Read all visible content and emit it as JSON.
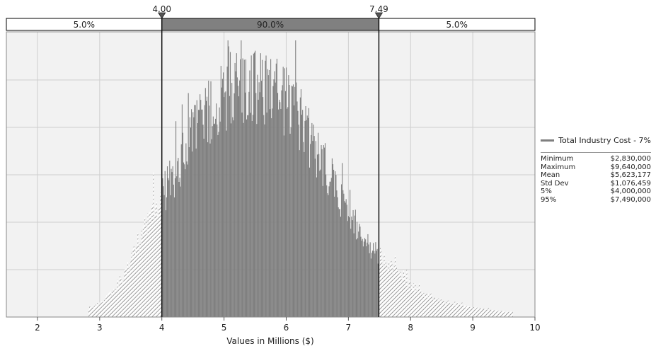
{
  "chart_data": {
    "type": "bar",
    "title": "",
    "xlabel": "Values in Millions ($)",
    "ylabel": "",
    "xlim": [
      1.5,
      10
    ],
    "x_ticks": [
      "2",
      "3",
      "4",
      "5",
      "6",
      "7",
      "8",
      "9",
      "10"
    ],
    "grid": true,
    "legend_position": "right",
    "series": [
      {
        "name": "Total Industry Cost - 7%",
        "color": "#7f7f7f"
      }
    ],
    "delimiters": {
      "left": "4.00",
      "right": "7.49",
      "left_value": 4.0,
      "right_value": 7.49
    },
    "bands": [
      "5.0%",
      "90.0%",
      "5.0%"
    ],
    "histogram_envelope": {
      "x": [
        2.8,
        3.0,
        3.2,
        3.4,
        3.6,
        3.8,
        4.0,
        4.2,
        4.4,
        4.6,
        4.8,
        5.0,
        5.2,
        5.4,
        5.6,
        5.8,
        6.0,
        6.2,
        6.4,
        6.6,
        6.8,
        7.0,
        7.2,
        7.4,
        7.6,
        7.8,
        8.0,
        8.2,
        8.4,
        8.6,
        8.8,
        9.0,
        9.2,
        9.4,
        9.6
      ],
      "relative_height": [
        0.03,
        0.05,
        0.09,
        0.16,
        0.26,
        0.38,
        0.45,
        0.53,
        0.64,
        0.72,
        0.78,
        0.83,
        0.86,
        0.87,
        0.86,
        0.84,
        0.8,
        0.75,
        0.66,
        0.57,
        0.48,
        0.39,
        0.31,
        0.25,
        0.2,
        0.16,
        0.12,
        0.09,
        0.07,
        0.055,
        0.045,
        0.035,
        0.028,
        0.022,
        0.018
      ]
    },
    "stats": [
      {
        "label": "Minimum",
        "value": "$2,830,000"
      },
      {
        "label": "Maximum",
        "value": "$9,640,000"
      },
      {
        "label": "Mean",
        "value": "$5,623,177"
      },
      {
        "label": "Std Dev",
        "value": "$1,076,459"
      },
      {
        "label": "5%",
        "value": "$4,000,000"
      },
      {
        "label": "95%",
        "value": "$7,490,000"
      }
    ]
  }
}
